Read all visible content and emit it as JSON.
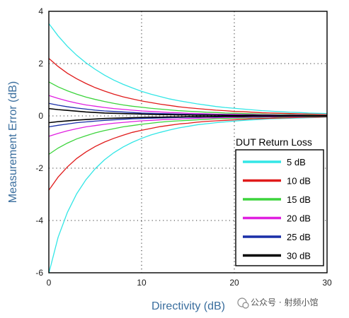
{
  "chart_data": {
    "type": "line",
    "title": "",
    "xlabel": "Directivity (dB)",
    "ylabel": "Measurement Error (dB)",
    "xlim": [
      0,
      30
    ],
    "ylim": [
      -6,
      4
    ],
    "x_ticks": [
      "0",
      "10",
      "20",
      "30"
    ],
    "y_ticks": [
      "4",
      "2",
      "0",
      "-2",
      "-4",
      "-6"
    ],
    "grid": "dotted",
    "legend": {
      "title": "DUT Return Loss",
      "placement": "bottom-right"
    },
    "x": [
      0,
      1,
      2,
      3,
      4,
      5,
      6,
      7,
      8,
      9,
      10,
      11,
      12,
      13,
      14,
      15,
      16,
      17,
      18,
      19,
      20,
      21,
      22,
      23,
      24,
      25,
      26,
      27,
      28,
      29,
      30
    ],
    "series": [
      {
        "name": "5 dB",
        "color": "#33e6e6",
        "upper": [
          3.53,
          3.06,
          2.66,
          2.32,
          2.03,
          1.78,
          1.56,
          1.37,
          1.21,
          1.07,
          0.94,
          0.83,
          0.74,
          0.65,
          0.58,
          0.52,
          0.46,
          0.41,
          0.36,
          0.32,
          0.29,
          0.26,
          0.23,
          0.2,
          0.18,
          0.16,
          0.14,
          0.13,
          0.11,
          0.1,
          0.09
        ],
        "lower": [
          -6.02,
          -4.64,
          -3.69,
          -2.98,
          -2.44,
          -2.02,
          -1.68,
          -1.41,
          -1.19,
          -1.01,
          -0.86,
          -0.73,
          -0.63,
          -0.54,
          -0.46,
          -0.4,
          -0.34,
          -0.3,
          -0.26,
          -0.23,
          -0.2,
          -0.17,
          -0.15,
          -0.13,
          -0.11,
          -0.1,
          -0.09,
          -0.08,
          -0.07,
          -0.06,
          -0.05
        ]
      },
      {
        "name": "10 dB",
        "color": "#e01b1b",
        "upper": [
          2.2,
          1.89,
          1.63,
          1.42,
          1.24,
          1.08,
          0.95,
          0.83,
          0.73,
          0.65,
          0.57,
          0.51,
          0.45,
          0.4,
          0.35,
          0.31,
          0.28,
          0.25,
          0.22,
          0.2,
          0.17,
          0.16,
          0.14,
          0.12,
          0.11,
          0.1,
          0.09,
          0.08,
          0.07,
          0.06,
          0.05
        ],
        "lower": [
          -2.84,
          -2.34,
          -1.95,
          -1.63,
          -1.38,
          -1.17,
          -1.0,
          -0.86,
          -0.74,
          -0.63,
          -0.55,
          -0.48,
          -0.41,
          -0.36,
          -0.31,
          -0.28,
          -0.24,
          -0.21,
          -0.19,
          -0.17,
          -0.15,
          -0.13,
          -0.11,
          -0.1,
          -0.09,
          -0.08,
          -0.07,
          -0.06,
          -0.05,
          -0.05,
          -0.04
        ]
      },
      {
        "name": "15 dB",
        "color": "#3cd43c",
        "upper": [
          1.3,
          1.11,
          0.96,
          0.83,
          0.72,
          0.63,
          0.55,
          0.48,
          0.42,
          0.37,
          0.33,
          0.29,
          0.26,
          0.23,
          0.2,
          0.18,
          0.16,
          0.14,
          0.13,
          0.11,
          0.1,
          0.09,
          0.08,
          0.07,
          0.06,
          0.05,
          0.05,
          0.04,
          0.04,
          0.03,
          0.03
        ],
        "lower": [
          -1.47,
          -1.23,
          -1.04,
          -0.88,
          -0.76,
          -0.65,
          -0.56,
          -0.49,
          -0.42,
          -0.37,
          -0.32,
          -0.28,
          -0.24,
          -0.21,
          -0.19,
          -0.17,
          -0.15,
          -0.13,
          -0.11,
          -0.1,
          -0.09,
          -0.08,
          -0.07,
          -0.06,
          -0.05,
          -0.05,
          -0.04,
          -0.04,
          -0.03,
          -0.03,
          -0.03
        ]
      },
      {
        "name": "20 dB",
        "color": "#e020e0",
        "upper": [
          0.78,
          0.67,
          0.57,
          0.49,
          0.42,
          0.37,
          0.32,
          0.28,
          0.25,
          0.22,
          0.19,
          0.17,
          0.15,
          0.13,
          0.12,
          0.1,
          0.09,
          0.08,
          0.07,
          0.06,
          0.06,
          0.05,
          0.05,
          0.04,
          0.04,
          0.03,
          0.03,
          0.03,
          0.02,
          0.02,
          0.02
        ],
        "lower": [
          -0.78,
          -0.67,
          -0.57,
          -0.49,
          -0.42,
          -0.37,
          -0.32,
          -0.28,
          -0.25,
          -0.22,
          -0.19,
          -0.17,
          -0.15,
          -0.13,
          -0.12,
          -0.1,
          -0.09,
          -0.08,
          -0.07,
          -0.06,
          -0.06,
          -0.05,
          -0.05,
          -0.04,
          -0.04,
          -0.03,
          -0.03,
          -0.03,
          -0.02,
          -0.02,
          -0.02
        ]
      },
      {
        "name": "25 dB",
        "color": "#1a2fa8",
        "upper": [
          0.48,
          0.41,
          0.35,
          0.3,
          0.26,
          0.22,
          0.19,
          0.17,
          0.15,
          0.13,
          0.11,
          0.1,
          0.09,
          0.08,
          0.07,
          0.06,
          0.05,
          0.05,
          0.04,
          0.04,
          0.03,
          0.03,
          0.03,
          0.02,
          0.02,
          0.02,
          0.02,
          0.02,
          0.01,
          0.01,
          0.01
        ],
        "lower": [
          -0.42,
          -0.36,
          -0.31,
          -0.26,
          -0.23,
          -0.2,
          -0.17,
          -0.15,
          -0.13,
          -0.11,
          -0.1,
          -0.09,
          -0.08,
          -0.07,
          -0.06,
          -0.05,
          -0.05,
          -0.04,
          -0.04,
          -0.03,
          -0.03,
          -0.03,
          -0.02,
          -0.02,
          -0.02,
          -0.02,
          -0.01,
          -0.01,
          -0.01,
          -0.01,
          -0.01
        ]
      },
      {
        "name": "30 dB",
        "color": "#000000",
        "upper": [
          0.28,
          0.24,
          0.21,
          0.18,
          0.15,
          0.13,
          0.11,
          0.1,
          0.09,
          0.08,
          0.07,
          0.06,
          0.05,
          0.05,
          0.04,
          0.04,
          0.03,
          0.03,
          0.03,
          0.02,
          0.02,
          0.02,
          0.02,
          0.01,
          0.01,
          0.01,
          0.01,
          0.01,
          0.01,
          0.01,
          0.01
        ],
        "lower": [
          -0.26,
          -0.22,
          -0.19,
          -0.16,
          -0.14,
          -0.12,
          -0.1,
          -0.09,
          -0.08,
          -0.07,
          -0.06,
          -0.05,
          -0.05,
          -0.04,
          -0.04,
          -0.03,
          -0.03,
          -0.03,
          -0.02,
          -0.02,
          -0.02,
          -0.02,
          -0.01,
          -0.01,
          -0.01,
          -0.01,
          -0.01,
          -0.01,
          -0.01,
          -0.01,
          -0.01
        ]
      }
    ]
  },
  "watermark": "公众号 · 射频小馆"
}
